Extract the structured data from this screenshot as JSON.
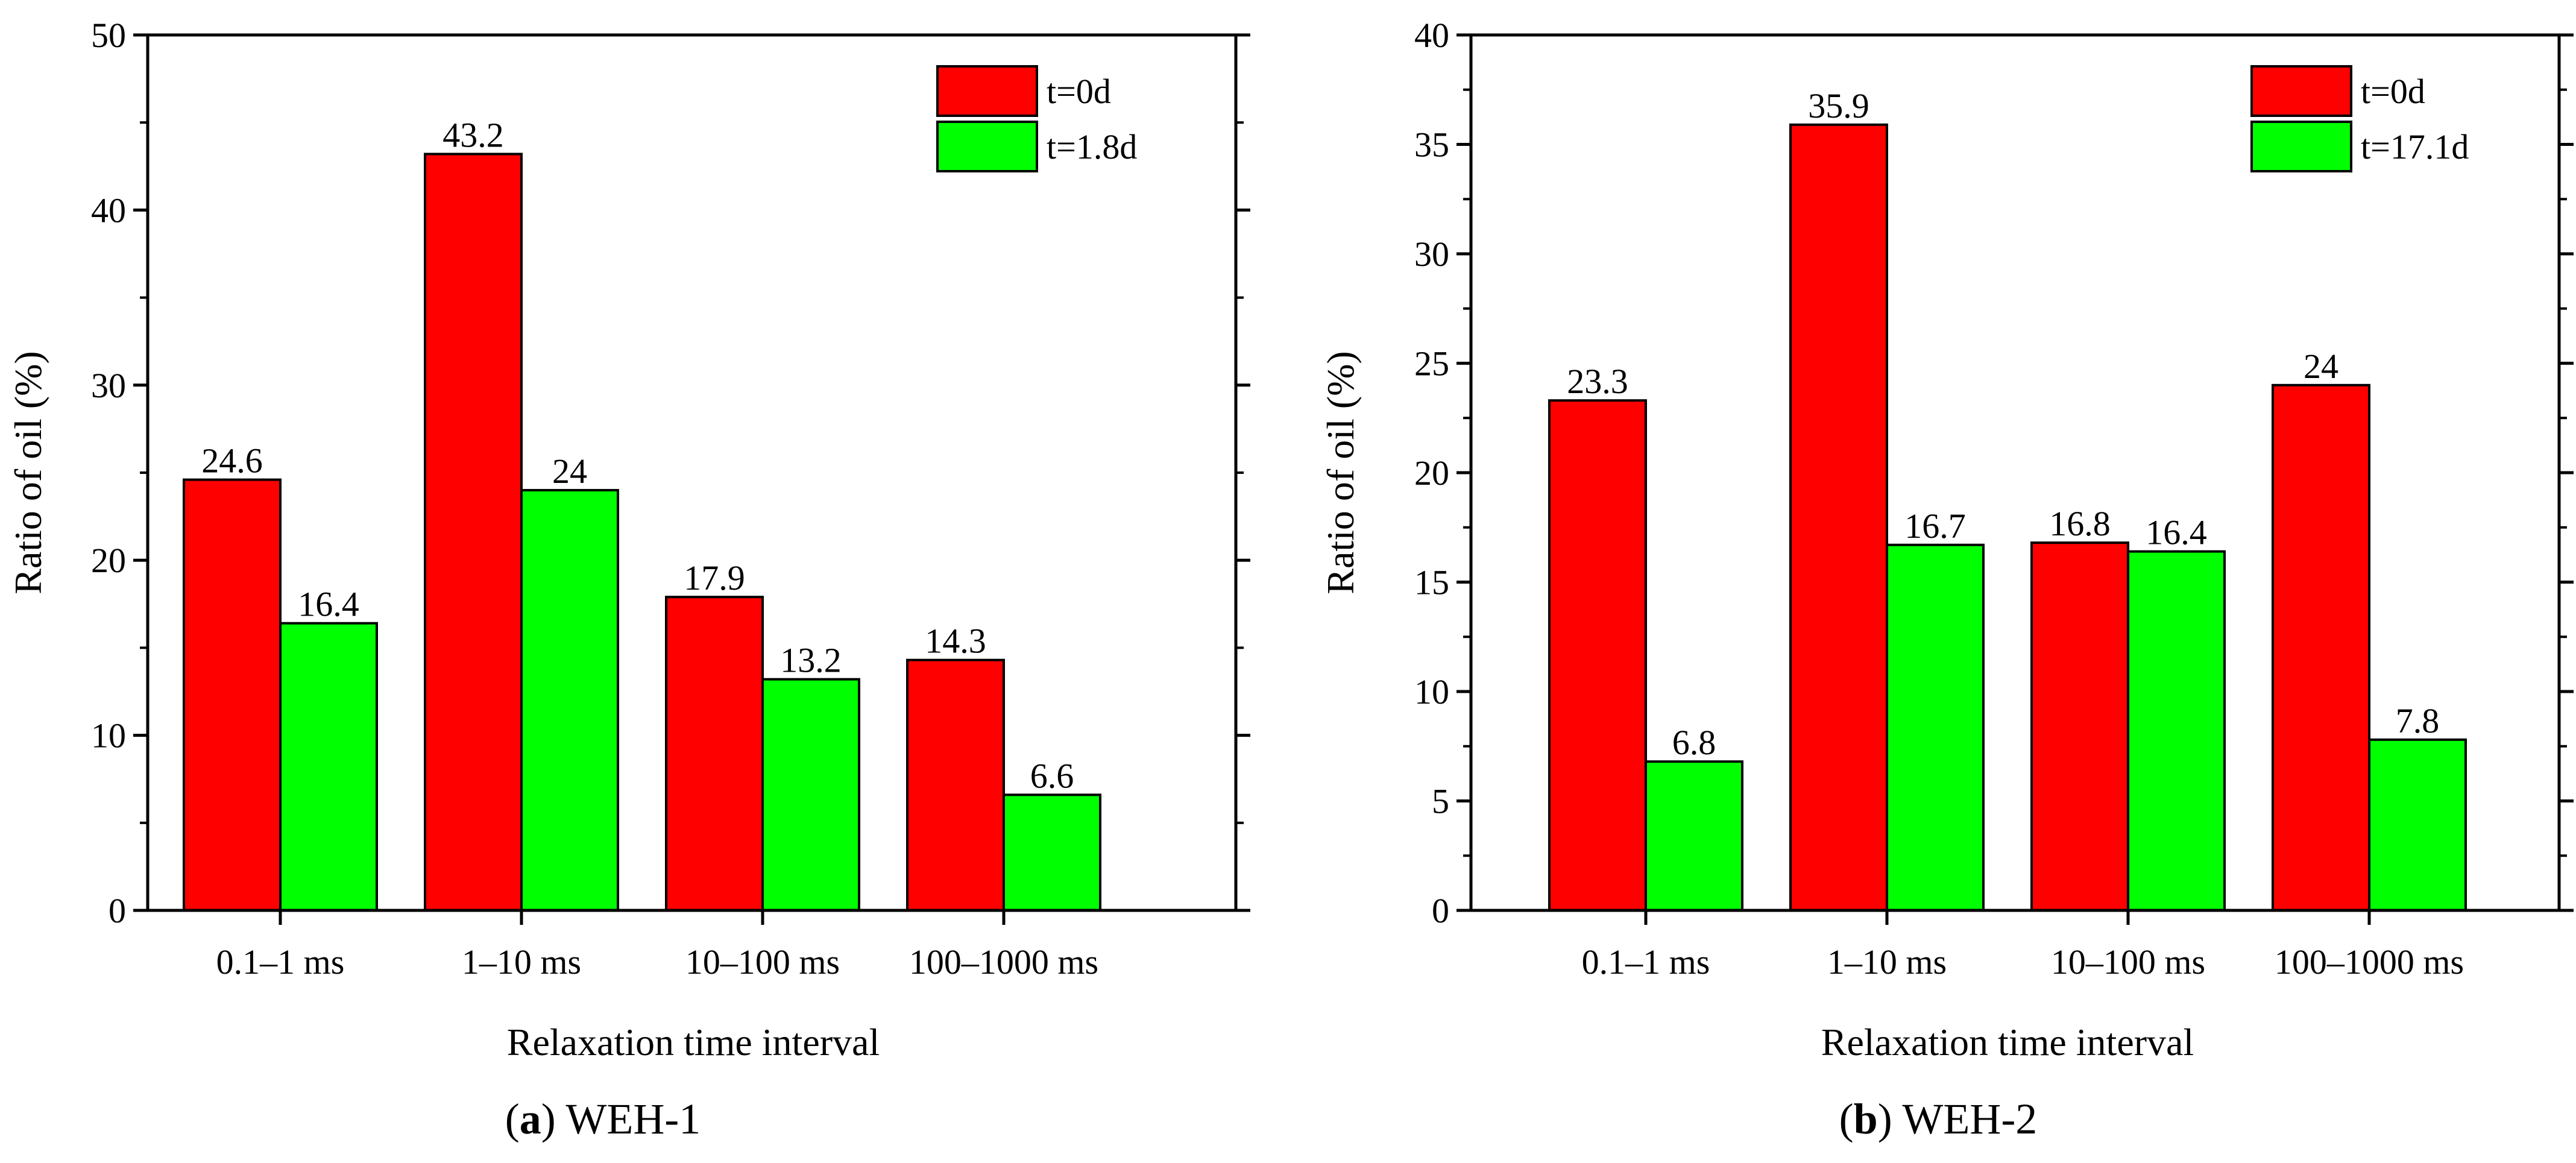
{
  "colors": {
    "series1": "#ff0000",
    "series2": "#00ff00",
    "axis": "#000000",
    "background": "#ffffff"
  },
  "chart_data": [
    {
      "type": "bar",
      "panel_letter": "a",
      "panel_name": "WEH-1",
      "xlabel": "Relaxation time interval",
      "ylabel": "Ratio of oil (%)",
      "ylim": [
        0,
        50
      ],
      "y_major_ticks": [
        0,
        10,
        20,
        30,
        40,
        50
      ],
      "y_minor_step": 5,
      "grid": false,
      "legend_position": "top-right",
      "categories": [
        "0.1–1 ms",
        "1–10 ms",
        "10–100 ms",
        "100–1000 ms"
      ],
      "series": [
        {
          "name": "t=0d",
          "values": [
            24.6,
            43.2,
            17.9,
            14.3
          ],
          "labels": [
            "24.6",
            "43.2",
            "17.9",
            "14.3"
          ]
        },
        {
          "name": "t=1.8d",
          "values": [
            16.4,
            24,
            13.2,
            6.6
          ],
          "labels": [
            "16.4",
            "24",
            "13.2",
            "6.6"
          ]
        }
      ]
    },
    {
      "type": "bar",
      "panel_letter": "b",
      "panel_name": "WEH-2",
      "xlabel": "Relaxation time interval",
      "ylabel": "Ratio of oil (%)",
      "ylim": [
        0,
        40
      ],
      "y_major_ticks": [
        0,
        5,
        10,
        15,
        20,
        25,
        30,
        35,
        40
      ],
      "y_minor_step": 2.5,
      "grid": false,
      "legend_position": "top-right",
      "categories": [
        "0.1–1 ms",
        "1–10 ms",
        "10–100 ms",
        "100–1000 ms"
      ],
      "series": [
        {
          "name": "t=0d",
          "values": [
            23.3,
            35.9,
            16.8,
            24
          ],
          "labels": [
            "23.3",
            "35.9",
            "16.8",
            "24"
          ]
        },
        {
          "name": "t=17.1d",
          "values": [
            6.8,
            16.7,
            16.4,
            7.8
          ],
          "labels": [
            "6.8",
            "16.7",
            "16.4",
            "7.8"
          ]
        }
      ]
    }
  ]
}
